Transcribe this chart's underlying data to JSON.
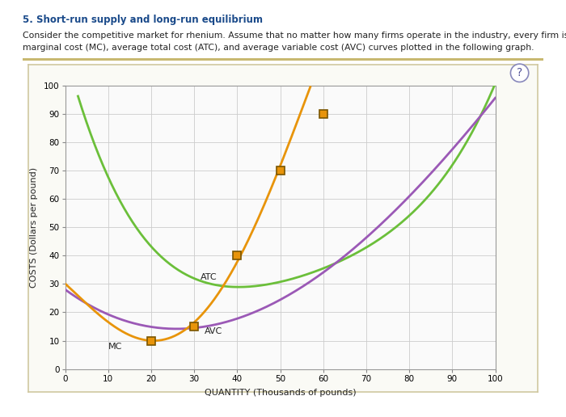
{
  "title": "5. Short-run supply and long-run equilibrium",
  "body_text1": "Consider the competitive market for rhenium. Assume that no matter how many firms operate in the industry, every firm is identical and faces the same",
  "body_text2": "marginal cost (MC), average total cost (ATC), and average variable cost (AVC) curves plotted in the following graph.",
  "xlabel": "QUANTITY (Thousands of pounds)",
  "ylabel": "COSTS (Dollars per pound)",
  "xlim": [
    0,
    100
  ],
  "ylim": [
    0,
    100
  ],
  "xticks": [
    0,
    10,
    20,
    30,
    40,
    50,
    60,
    70,
    80,
    90,
    100
  ],
  "yticks": [
    0,
    10,
    20,
    30,
    40,
    50,
    60,
    70,
    80,
    90,
    100
  ],
  "mc_color": "#E8940A",
  "atc_color": "#6BBF3A",
  "avc_color": "#9B59B6",
  "marker_facecolor": "#E8940A",
  "marker_edgecolor": "#7A5500",
  "plot_bg": "#FAFAFA",
  "page_bg": "#FFFFFF",
  "frame_bg": "#FAFAF5",
  "grid_color": "#CCCCCC",
  "mc_label": "MC",
  "atc_label": "ATC",
  "avc_label": "AVC",
  "mc_markers_x": [
    20,
    30,
    40,
    50,
    60
  ],
  "mc_markers_y": [
    10,
    15,
    40,
    70,
    90
  ],
  "label_fontsize": 8,
  "axis_label_fontsize": 8,
  "tick_fontsize": 7.5,
  "title_fontsize": 8.5,
  "body_fontsize": 7.8
}
